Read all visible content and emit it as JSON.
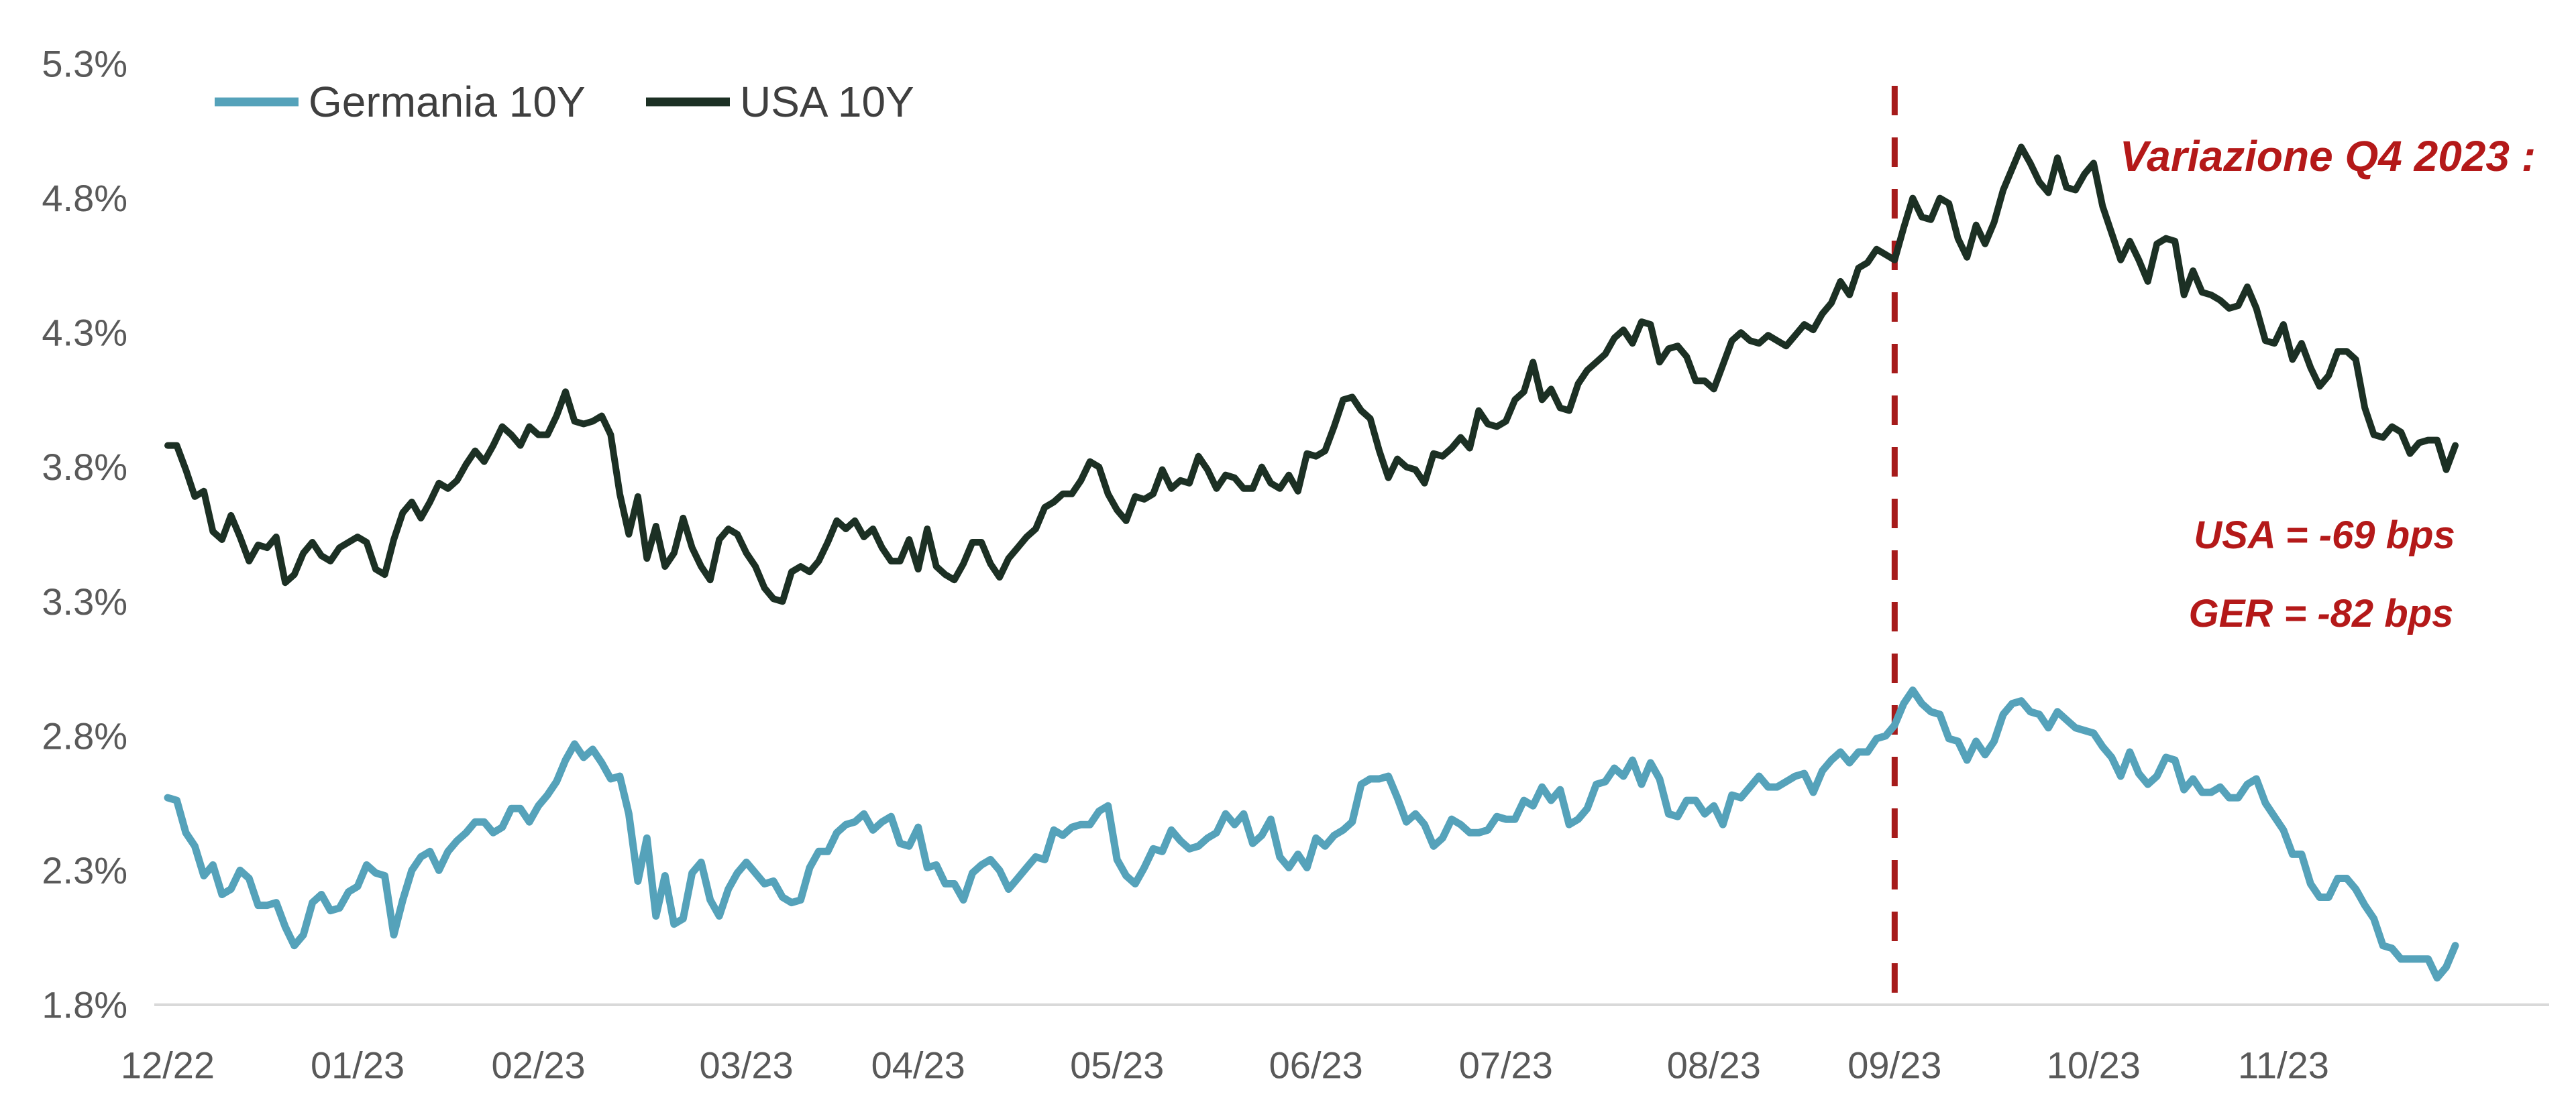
{
  "chart_data": {
    "type": "line",
    "title": "",
    "background": "#ffffff",
    "axis_text_color": "#595959",
    "axis_line_color": "#d9d9d9",
    "legend_text_color": "#3f3f3f",
    "legend_position": "top-left",
    "grid": "off",
    "y_axis": {
      "unit": "%",
      "min": 1.8,
      "max": 5.3,
      "ticks": [
        {
          "label": "5.3%",
          "value": 5.3
        },
        {
          "label": "4.8%",
          "value": 4.8
        },
        {
          "label": "4.3%",
          "value": 4.3
        },
        {
          "label": "3.8%",
          "value": 3.8
        },
        {
          "label": "3.3%",
          "value": 3.3
        },
        {
          "label": "2.8%",
          "value": 2.8
        },
        {
          "label": "2.3%",
          "value": 2.3
        },
        {
          "label": "1.8%",
          "value": 1.8
        }
      ]
    },
    "x_axis": {
      "description": "monthly ticks, daily data from end of Dec 2022 to end of Dec 2023",
      "ticks": [
        {
          "label": "12/22",
          "index": 0
        },
        {
          "label": "01/23",
          "index": 21
        },
        {
          "label": "02/23",
          "index": 41
        },
        {
          "label": "03/23",
          "index": 64
        },
        {
          "label": "04/23",
          "index": 83
        },
        {
          "label": "05/23",
          "index": 105
        },
        {
          "label": "06/23",
          "index": 127
        },
        {
          "label": "07/23",
          "index": 148
        },
        {
          "label": "08/23",
          "index": 171
        },
        {
          "label": "09/23",
          "index": 191
        },
        {
          "label": "10/23",
          "index": 213
        },
        {
          "label": "11/23",
          "index": 234
        }
      ]
    },
    "series": [
      {
        "name": "Germania 10Y",
        "color": "#55a2ba",
        "stroke_width": 11,
        "values": [
          2.57,
          2.56,
          2.44,
          2.39,
          2.28,
          2.32,
          2.21,
          2.23,
          2.3,
          2.27,
          2.17,
          2.17,
          2.18,
          2.09,
          2.02,
          2.06,
          2.18,
          2.21,
          2.15,
          2.16,
          2.22,
          2.24,
          2.32,
          2.29,
          2.28,
          2.06,
          2.19,
          2.3,
          2.35,
          2.37,
          2.3,
          2.37,
          2.41,
          2.44,
          2.48,
          2.48,
          2.44,
          2.46,
          2.53,
          2.53,
          2.48,
          2.54,
          2.58,
          2.63,
          2.71,
          2.77,
          2.72,
          2.75,
          2.7,
          2.64,
          2.65,
          2.51,
          2.26,
          2.42,
          2.13,
          2.28,
          2.1,
          2.12,
          2.29,
          2.33,
          2.19,
          2.13,
          2.23,
          2.29,
          2.33,
          2.29,
          2.25,
          2.26,
          2.2,
          2.18,
          2.19,
          2.31,
          2.37,
          2.37,
          2.44,
          2.47,
          2.48,
          2.51,
          2.45,
          2.48,
          2.5,
          2.4,
          2.39,
          2.46,
          2.31,
          2.32,
          2.25,
          2.25,
          2.19,
          2.29,
          2.32,
          2.34,
          2.3,
          2.23,
          2.27,
          2.31,
          2.35,
          2.34,
          2.45,
          2.43,
          2.46,
          2.47,
          2.47,
          2.52,
          2.54,
          2.34,
          2.28,
          2.25,
          2.31,
          2.38,
          2.37,
          2.45,
          2.41,
          2.38,
          2.39,
          2.42,
          2.44,
          2.51,
          2.47,
          2.51,
          2.4,
          2.43,
          2.49,
          2.35,
          2.31,
          2.36,
          2.31,
          2.42,
          2.39,
          2.43,
          2.45,
          2.48,
          2.62,
          2.64,
          2.64,
          2.65,
          2.57,
          2.48,
          2.51,
          2.47,
          2.39,
          2.42,
          2.49,
          2.47,
          2.44,
          2.44,
          2.45,
          2.5,
          2.49,
          2.49,
          2.56,
          2.54,
          2.61,
          2.56,
          2.6,
          2.47,
          2.49,
          2.53,
          2.62,
          2.63,
          2.68,
          2.65,
          2.71,
          2.62,
          2.7,
          2.64,
          2.51,
          2.5,
          2.56,
          2.56,
          2.51,
          2.54,
          2.47,
          2.58,
          2.57,
          2.61,
          2.65,
          2.61,
          2.61,
          2.63,
          2.65,
          2.66,
          2.59,
          2.67,
          2.71,
          2.74,
          2.7,
          2.74,
          2.74,
          2.79,
          2.8,
          2.84,
          2.92,
          2.97,
          2.92,
          2.89,
          2.88,
          2.79,
          2.78,
          2.71,
          2.78,
          2.73,
          2.78,
          2.88,
          2.92,
          2.93,
          2.89,
          2.88,
          2.83,
          2.89,
          2.86,
          2.83,
          2.82,
          2.81,
          2.76,
          2.72,
          2.65,
          2.74,
          2.66,
          2.62,
          2.65,
          2.72,
          2.71,
          2.6,
          2.64,
          2.59,
          2.59,
          2.61,
          2.57,
          2.57,
          2.62,
          2.64,
          2.55,
          2.5,
          2.45,
          2.36,
          2.36,
          2.25,
          2.2,
          2.2,
          2.27,
          2.27,
          2.23,
          2.17,
          2.12,
          2.02,
          2.01,
          1.97,
          1.97,
          1.97,
          1.97,
          1.9,
          1.94,
          2.02
        ]
      },
      {
        "name": "USA 10Y",
        "color": "#1c3024",
        "stroke_width": 10,
        "values": [
          3.88,
          3.88,
          3.79,
          3.69,
          3.71,
          3.56,
          3.53,
          3.62,
          3.54,
          3.45,
          3.51,
          3.5,
          3.54,
          3.37,
          3.4,
          3.48,
          3.52,
          3.47,
          3.45,
          3.5,
          3.52,
          3.54,
          3.52,
          3.42,
          3.4,
          3.53,
          3.63,
          3.67,
          3.61,
          3.67,
          3.74,
          3.72,
          3.75,
          3.81,
          3.86,
          3.82,
          3.88,
          3.95,
          3.92,
          3.88,
          3.95,
          3.92,
          3.92,
          3.99,
          4.08,
          3.97,
          3.96,
          3.97,
          3.99,
          3.92,
          3.7,
          3.55,
          3.69,
          3.46,
          3.58,
          3.43,
          3.48,
          3.61,
          3.5,
          3.43,
          3.38,
          3.53,
          3.57,
          3.55,
          3.48,
          3.43,
          3.35,
          3.31,
          3.3,
          3.41,
          3.43,
          3.41,
          3.45,
          3.52,
          3.6,
          3.57,
          3.6,
          3.54,
          3.57,
          3.5,
          3.45,
          3.45,
          3.53,
          3.42,
          3.57,
          3.43,
          3.4,
          3.38,
          3.44,
          3.52,
          3.52,
          3.44,
          3.39,
          3.46,
          3.5,
          3.54,
          3.57,
          3.65,
          3.67,
          3.7,
          3.7,
          3.75,
          3.82,
          3.8,
          3.7,
          3.64,
          3.6,
          3.69,
          3.68,
          3.7,
          3.79,
          3.72,
          3.75,
          3.74,
          3.84,
          3.79,
          3.72,
          3.77,
          3.76,
          3.72,
          3.72,
          3.8,
          3.74,
          3.72,
          3.77,
          3.71,
          3.85,
          3.84,
          3.86,
          3.95,
          4.05,
          4.06,
          4.01,
          3.98,
          3.86,
          3.76,
          3.83,
          3.8,
          3.79,
          3.74,
          3.85,
          3.84,
          3.87,
          3.91,
          3.87,
          4.01,
          3.96,
          3.95,
          3.97,
          4.05,
          4.08,
          4.19,
          4.05,
          4.09,
          4.02,
          4.01,
          4.11,
          4.16,
          4.19,
          4.22,
          4.28,
          4.31,
          4.26,
          4.34,
          4.33,
          4.19,
          4.24,
          4.25,
          4.21,
          4.12,
          4.12,
          4.09,
          4.18,
          4.27,
          4.3,
          4.27,
          4.26,
          4.29,
          4.27,
          4.25,
          4.29,
          4.33,
          4.31,
          4.37,
          4.41,
          4.49,
          4.44,
          4.54,
          4.56,
          4.61,
          4.59,
          4.57,
          4.69,
          4.8,
          4.73,
          4.72,
          4.8,
          4.78,
          4.65,
          4.58,
          4.7,
          4.63,
          4.71,
          4.83,
          4.91,
          4.99,
          4.93,
          4.86,
          4.82,
          4.95,
          4.84,
          4.83,
          4.89,
          4.93,
          4.77,
          4.67,
          4.57,
          4.64,
          4.57,
          4.49,
          4.63,
          4.65,
          4.64,
          4.44,
          4.53,
          4.45,
          4.44,
          4.42,
          4.39,
          4.4,
          4.47,
          4.39,
          4.27,
          4.26,
          4.33,
          4.2,
          4.26,
          4.17,
          4.1,
          4.14,
          4.23,
          4.23,
          4.2,
          4.02,
          3.92,
          3.91,
          3.95,
          3.93,
          3.85,
          3.89,
          3.9,
          3.9,
          3.79,
          3.88
        ]
      }
    ],
    "vline": {
      "index": 191,
      "color": "#a61b1b",
      "style": "dashed",
      "meaning": "start of Q4 2023"
    },
    "annotations": {
      "color": "#b41919",
      "title": "Variazione Q4 2023 :",
      "lines": [
        "USA = -69 bps",
        "GER = -82 bps"
      ]
    }
  }
}
